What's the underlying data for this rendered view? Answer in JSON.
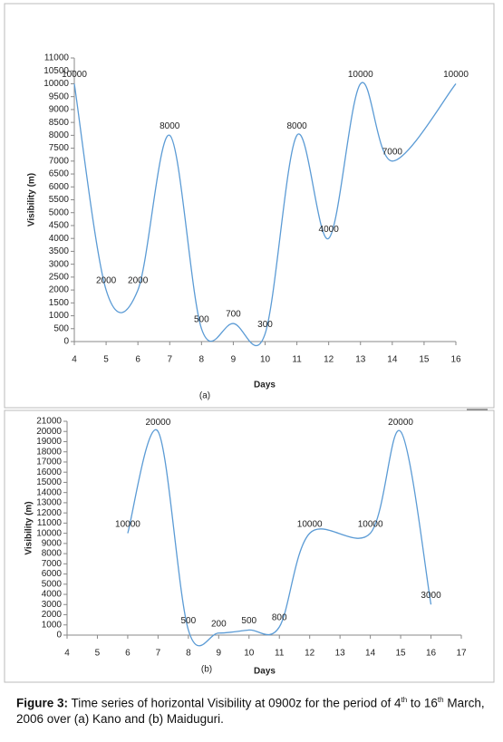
{
  "chart_data": [
    {
      "type": "line",
      "panel": "(a)",
      "x_label": "Days",
      "y_label": "Visibility (m)",
      "x": [
        4,
        5,
        6,
        7,
        8,
        9,
        10,
        11,
        12,
        13,
        14,
        16
      ],
      "series": [
        {
          "color": "#5b9bd5",
          "values": [
            10000,
            2000,
            2000,
            8000,
            500,
            700,
            300,
            8000,
            4000,
            10000,
            7000,
            10000
          ]
        }
      ],
      "xlim": [
        4,
        16
      ],
      "xticks": [
        4,
        5,
        6,
        7,
        8,
        9,
        10,
        11,
        12,
        13,
        14,
        15,
        16
      ],
      "ylim": [
        0,
        11000
      ],
      "yticks": [
        0,
        500,
        1000,
        1500,
        2000,
        2500,
        3000,
        3500,
        4000,
        4500,
        5000,
        5500,
        6000,
        6500,
        7000,
        7500,
        8000,
        8500,
        9000,
        9500,
        10000,
        10500,
        11000
      ]
    },
    {
      "type": "line",
      "panel": "(b)",
      "x_label": "Days",
      "y_label": "Visibility (m)",
      "x": [
        6,
        7,
        8,
        9,
        10,
        11,
        12,
        14,
        15,
        16
      ],
      "series": [
        {
          "color": "#5b9bd5",
          "values": [
            10000,
            20000,
            500,
            200,
            500,
            800,
            10000,
            10000,
            20000,
            3000
          ]
        }
      ],
      "xlim": [
        4,
        17
      ],
      "xticks": [
        4,
        5,
        6,
        7,
        8,
        9,
        10,
        11,
        12,
        13,
        14,
        15,
        16,
        17
      ],
      "ylim": [
        0,
        21000
      ],
      "yticks": [
        0,
        1000,
        2000,
        3000,
        4000,
        5000,
        6000,
        7000,
        8000,
        9000,
        10000,
        11000,
        12000,
        13000,
        14000,
        15000,
        16000,
        17000,
        18000,
        19000,
        20000,
        21000
      ]
    }
  ],
  "caption": {
    "label": "Figure 3:",
    "text1": " Time series of horizontal Visibility at 0900z for the period of 4",
    "sup1": "th",
    "text2": " to 16",
    "sup2": "th",
    "text3": " March, 2006 over (a) Kano and (b) Maiduguri."
  }
}
